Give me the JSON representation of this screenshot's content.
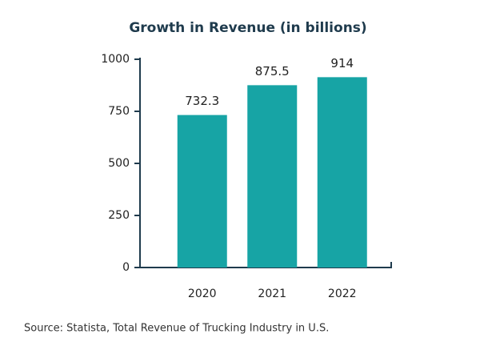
{
  "chart_data": {
    "type": "bar",
    "title": "Growth in Revenue (in billions)",
    "categories": [
      "2020",
      "2021",
      "2022"
    ],
    "values": [
      732.3,
      875.5,
      914
    ],
    "color": "#17a4a5",
    "ylim": [
      0,
      1000
    ],
    "yticks": [
      0,
      250,
      500,
      750,
      1000
    ],
    "source": "Source: Statista, Total Revenue of Trucking Industry in U.S."
  }
}
